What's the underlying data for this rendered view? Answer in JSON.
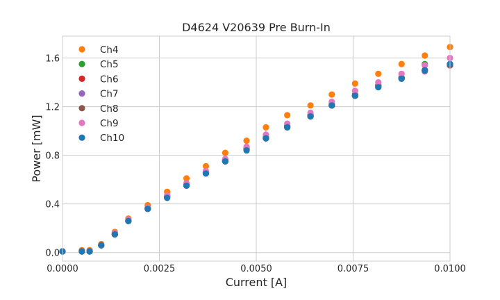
{
  "chart_data": {
    "type": "scatter",
    "title": "D4624 V20639 Pre Burn-In",
    "xlabel": "Current [A]",
    "ylabel": "Power [mW]",
    "xlim": [
      0.0,
      0.01
    ],
    "ylim": [
      -0.07,
      1.78
    ],
    "xticks": [
      "0.0000",
      "0.0025",
      "0.0050",
      "0.0075",
      "0.0100"
    ],
    "yticks": [
      "0.0",
      "0.4",
      "0.8",
      "1.2",
      "1.6"
    ],
    "grid": true,
    "legend_position": "top-left",
    "x": [
      0.0,
      0.0005,
      0.0007,
      0.001,
      0.00135,
      0.0017,
      0.0022,
      0.0027,
      0.0032,
      0.0037,
      0.0042,
      0.00475,
      0.00525,
      0.0058,
      0.0064,
      0.00695,
      0.00755,
      0.00815,
      0.00875,
      0.00935,
      0.01
    ],
    "series": [
      {
        "name": "Ch4",
        "color": "#ff7f0e",
        "values": [
          0.01,
          0.02,
          0.02,
          0.07,
          0.17,
          0.28,
          0.39,
          0.5,
          0.61,
          0.71,
          0.82,
          0.92,
          1.03,
          1.13,
          1.21,
          1.3,
          1.39,
          1.47,
          1.55,
          1.62,
          1.69
        ]
      },
      {
        "name": "Ch5",
        "color": "#2ca02c",
        "values": [
          0.01,
          0.01,
          0.01,
          0.06,
          0.16,
          0.26,
          0.37,
          0.46,
          0.56,
          0.66,
          0.76,
          0.86,
          0.95,
          1.04,
          1.13,
          1.22,
          1.3,
          1.38,
          1.44,
          1.55,
          1.55
        ]
      },
      {
        "name": "Ch6",
        "color": "#d62728",
        "values": [
          0.01,
          0.01,
          0.01,
          0.06,
          0.15,
          0.26,
          0.36,
          0.46,
          0.56,
          0.66,
          0.76,
          0.85,
          0.94,
          1.04,
          1.13,
          1.21,
          1.29,
          1.37,
          1.43,
          1.5,
          1.54
        ]
      },
      {
        "name": "Ch7",
        "color": "#9467bd",
        "values": [
          0.01,
          0.01,
          0.01,
          0.06,
          0.15,
          0.26,
          0.36,
          0.45,
          0.55,
          0.65,
          0.75,
          0.85,
          0.94,
          1.03,
          1.12,
          1.21,
          1.29,
          1.36,
          1.43,
          1.49,
          1.55
        ]
      },
      {
        "name": "Ch8",
        "color": "#8c564b",
        "values": [
          0.01,
          0.01,
          0.01,
          0.06,
          0.15,
          0.26,
          0.36,
          0.46,
          0.56,
          0.66,
          0.75,
          0.85,
          0.94,
          1.03,
          1.12,
          1.21,
          1.29,
          1.37,
          1.44,
          1.5,
          1.54
        ]
      },
      {
        "name": "Ch9",
        "color": "#e377c2",
        "values": [
          0.01,
          0.01,
          0.01,
          0.06,
          0.16,
          0.27,
          0.37,
          0.47,
          0.57,
          0.67,
          0.77,
          0.87,
          0.97,
          1.06,
          1.15,
          1.24,
          1.33,
          1.4,
          1.47,
          1.54,
          1.6
        ]
      },
      {
        "name": "Ch10",
        "color": "#1f77b4",
        "values": [
          0.01,
          0.01,
          0.01,
          0.06,
          0.15,
          0.26,
          0.36,
          0.45,
          0.55,
          0.65,
          0.75,
          0.84,
          0.94,
          1.03,
          1.12,
          1.21,
          1.29,
          1.36,
          1.43,
          1.5,
          1.55
        ]
      }
    ]
  }
}
